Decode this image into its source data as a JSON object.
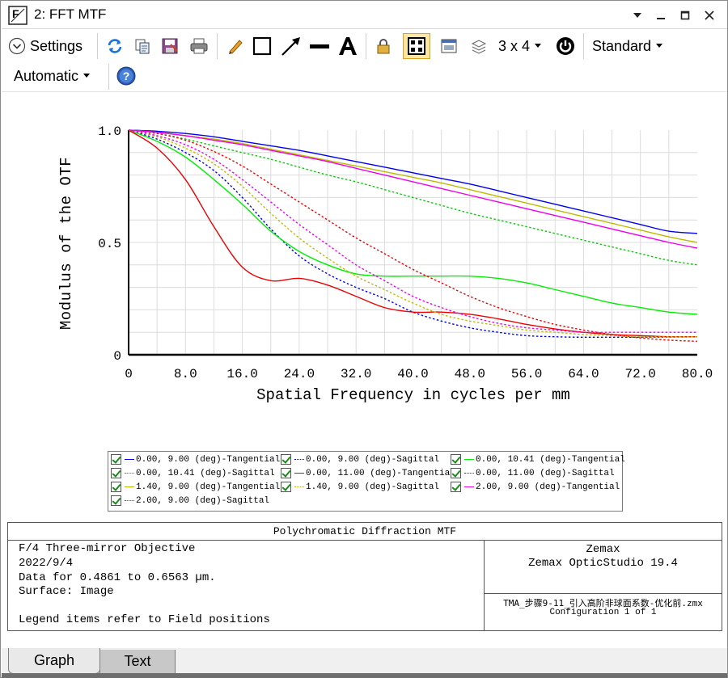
{
  "window": {
    "title": "2: FFT MTF",
    "icon": "zemax-f-icon",
    "controls": [
      "dropdown-arrow-icon",
      "minimize-icon",
      "maximize-icon",
      "close-icon"
    ]
  },
  "toolbar": {
    "settings_label": "Settings",
    "layout_label": "3 x 4",
    "standard_label": "Standard",
    "automatic_label": "Automatic",
    "icons": [
      "refresh-icon",
      "copy-icon",
      "save-icon",
      "print-icon",
      "pencil-icon",
      "rectangle-icon",
      "arrow-icon",
      "line-icon",
      "text-icon",
      "lock-icon",
      "layout-grid-icon",
      "window-icon",
      "layers-icon",
      "power-icon",
      "help-icon"
    ]
  },
  "chart_data": {
    "type": "line",
    "xlabel": "Spatial Frequency in cycles per mm",
    "ylabel": "Modulus of the OTF",
    "xlim": [
      0,
      80
    ],
    "ylim": [
      0,
      1
    ],
    "x_ticks": [
      "0",
      "8.0",
      "16.0",
      "24.0",
      "32.0",
      "40.0",
      "48.0",
      "56.0",
      "64.0",
      "72.0",
      "80.0"
    ],
    "y_ticks": [
      "0",
      "0.5",
      "1.0"
    ],
    "grid": true,
    "x": [
      0,
      4,
      8,
      12,
      16,
      20,
      24,
      28,
      32,
      36,
      40,
      44,
      48,
      52,
      56,
      60,
      64,
      68,
      72,
      76,
      80
    ],
    "series": [
      {
        "name": "0.00, 9.00 (deg)-Tangential",
        "color": "#0000ee",
        "dash": "solid",
        "values": [
          1.0,
          0.995,
          0.985,
          0.97,
          0.95,
          0.93,
          0.91,
          0.885,
          0.86,
          0.835,
          0.81,
          0.785,
          0.76,
          0.73,
          0.7,
          0.67,
          0.64,
          0.61,
          0.58,
          0.55,
          0.54
        ]
      },
      {
        "name": "0.00, 9.00 (deg)-Sagittal",
        "color": "#0000ee",
        "dash": "dotted",
        "values": [
          1.0,
          0.96,
          0.9,
          0.82,
          0.7,
          0.56,
          0.44,
          0.36,
          0.3,
          0.25,
          0.19,
          0.15,
          0.12,
          0.1,
          0.085,
          0.08,
          0.078,
          0.078,
          0.078,
          0.079,
          0.08
        ]
      },
      {
        "name": "0.00, 10.41 (deg)-Tangential",
        "color": "#00ee00",
        "dash": "solid",
        "values": [
          1.0,
          0.95,
          0.88,
          0.78,
          0.67,
          0.55,
          0.46,
          0.4,
          0.36,
          0.35,
          0.35,
          0.35,
          0.35,
          0.34,
          0.32,
          0.29,
          0.26,
          0.23,
          0.21,
          0.19,
          0.18
        ]
      },
      {
        "name": "0.00, 10.41 (deg)-Sagittal",
        "color": "#00cc00",
        "dash": "dotted",
        "values": [
          1.0,
          0.985,
          0.96,
          0.93,
          0.9,
          0.87,
          0.835,
          0.8,
          0.77,
          0.735,
          0.7,
          0.665,
          0.63,
          0.6,
          0.57,
          0.54,
          0.51,
          0.48,
          0.45,
          0.42,
          0.4
        ]
      },
      {
        "name": "0.00, 11.00 (deg)-Tangential",
        "color": "#ee0000",
        "dash": "solid",
        "values": [
          1.0,
          0.92,
          0.78,
          0.57,
          0.39,
          0.33,
          0.34,
          0.31,
          0.26,
          0.21,
          0.19,
          0.19,
          0.18,
          0.16,
          0.135,
          0.115,
          0.1,
          0.09,
          0.085,
          0.08,
          0.08
        ]
      },
      {
        "name": "0.00, 11.00 (deg)-Sagittal",
        "color": "#ee0000",
        "dash": "dotted",
        "values": [
          1.0,
          0.985,
          0.955,
          0.905,
          0.84,
          0.76,
          0.68,
          0.6,
          0.52,
          0.45,
          0.38,
          0.32,
          0.26,
          0.21,
          0.17,
          0.135,
          0.11,
          0.09,
          0.075,
          0.065,
          0.06
        ]
      },
      {
        "name": "1.40, 9.00 (deg)-Tangential",
        "color": "#bbbb00",
        "dash": "solid",
        "values": [
          1.0,
          0.99,
          0.975,
          0.96,
          0.94,
          0.915,
          0.89,
          0.865,
          0.84,
          0.815,
          0.79,
          0.765,
          0.735,
          0.705,
          0.675,
          0.645,
          0.615,
          0.585,
          0.555,
          0.525,
          0.5
        ]
      },
      {
        "name": "1.40, 9.00 (deg)-Sagittal",
        "color": "#bbbb00",
        "dash": "dotted",
        "values": [
          1.0,
          0.97,
          0.92,
          0.85,
          0.75,
          0.63,
          0.52,
          0.43,
          0.35,
          0.29,
          0.23,
          0.18,
          0.15,
          0.13,
          0.11,
          0.1,
          0.09,
          0.085,
          0.08,
          0.08,
          0.08
        ]
      },
      {
        "name": "2.00, 9.00 (deg)-Tangential",
        "color": "#ee00ee",
        "dash": "solid",
        "values": [
          1.0,
          0.99,
          0.975,
          0.955,
          0.935,
          0.91,
          0.885,
          0.86,
          0.83,
          0.8,
          0.77,
          0.74,
          0.71,
          0.68,
          0.65,
          0.62,
          0.59,
          0.56,
          0.53,
          0.5,
          0.475
        ]
      },
      {
        "name": "2.00, 9.00 (deg)-Sagittal",
        "color": "#ee00ee",
        "dash": "dotted",
        "values": [
          1.0,
          0.975,
          0.935,
          0.87,
          0.78,
          0.68,
          0.58,
          0.49,
          0.4,
          0.33,
          0.26,
          0.21,
          0.17,
          0.14,
          0.12,
          0.11,
          0.1,
          0.1,
          0.1,
          0.1,
          0.1
        ]
      }
    ]
  },
  "info": {
    "title": "Polychromatic Diffraction MTF",
    "left_lines": [
      "F/4 Three-mirror Objective",
      "2022/9/4",
      "Data for 0.4861 to 0.6563 µm.",
      "Surface: Image",
      "",
      "Legend items refer to Field positions"
    ],
    "right_top": [
      "Zemax",
      "Zemax OpticStudio 19.4"
    ],
    "right_bottom": [
      "TMA_步骤9-11_引入高阶非球面系数-优化前.zmx",
      "Configuration 1 of 1"
    ]
  },
  "tabs": [
    {
      "label": "Graph",
      "active": true
    },
    {
      "label": "Text",
      "active": false
    }
  ]
}
